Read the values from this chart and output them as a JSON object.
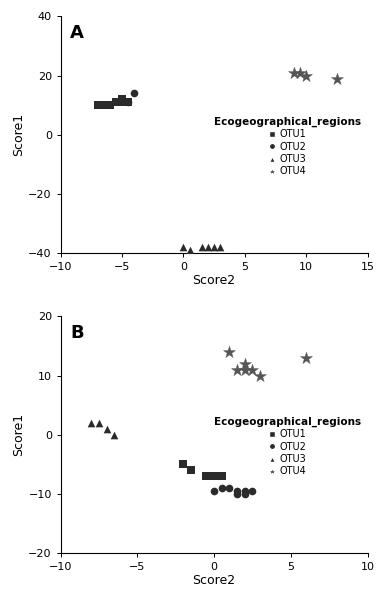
{
  "panel_A": {
    "OTU1": {
      "x": [
        -7,
        -6.5,
        -6,
        -5.5,
        -5.5,
        -5,
        -5,
        -4.5
      ],
      "y": [
        10,
        10,
        10,
        11,
        11,
        11,
        12,
        11
      ]
    },
    "OTU2": {
      "x": [
        -4.5,
        -4.0
      ],
      "y": [
        11,
        14
      ]
    },
    "OTU3": {
      "x": [
        0,
        0.5,
        1.5,
        2,
        2.5,
        3
      ],
      "y": [
        -38,
        -39,
        -38,
        -38,
        -38,
        -38
      ]
    },
    "OTU4": {
      "x": [
        9.0,
        9.5,
        10.0,
        12.5
      ],
      "y": [
        21,
        21,
        20,
        19
      ]
    }
  },
  "panel_B": {
    "OTU1": {
      "x": [
        -2.0,
        -1.5,
        -0.5,
        0.0,
        0.5
      ],
      "y": [
        -5,
        -6,
        -7,
        -7,
        -7
      ]
    },
    "OTU2": {
      "x": [
        0.0,
        0.5,
        1.0,
        1.5,
        1.5,
        2.0,
        2.0,
        2.5
      ],
      "y": [
        -9.5,
        -9,
        -9,
        -9.5,
        -10,
        -9.5,
        -10,
        -9.5
      ]
    },
    "OTU3": {
      "x": [
        -8.0,
        -7.5,
        -7.0,
        -6.5
      ],
      "y": [
        2,
        2,
        1,
        0
      ]
    },
    "OTU4": {
      "x": [
        1.0,
        1.5,
        2.0,
        2.0,
        2.5,
        3.0,
        6.0
      ],
      "y": [
        14,
        11,
        11,
        12,
        11,
        10,
        13
      ]
    }
  },
  "color_dark": "#2b2b2b",
  "color_mid": "#555555",
  "panel_A_xlim": [
    -10,
    15
  ],
  "panel_A_ylim": [
    -40,
    40
  ],
  "panel_A_xticks": [
    -10,
    -5,
    0,
    5,
    10,
    15
  ],
  "panel_A_yticks": [
    -40,
    -20,
    0,
    20,
    40
  ],
  "panel_B_xlim": [
    -10,
    10
  ],
  "panel_B_ylim": [
    -20,
    20
  ],
  "panel_B_xticks": [
    -10,
    -5,
    0,
    5,
    10
  ],
  "panel_B_yticks": [
    -20,
    -10,
    0,
    10,
    20
  ],
  "xlabel": "Score2",
  "ylabel": "Score1",
  "legend_title": "Ecogeographical_regions",
  "legend_labels": [
    "OTU1",
    "OTU2",
    "OTU3",
    "OTU4"
  ]
}
